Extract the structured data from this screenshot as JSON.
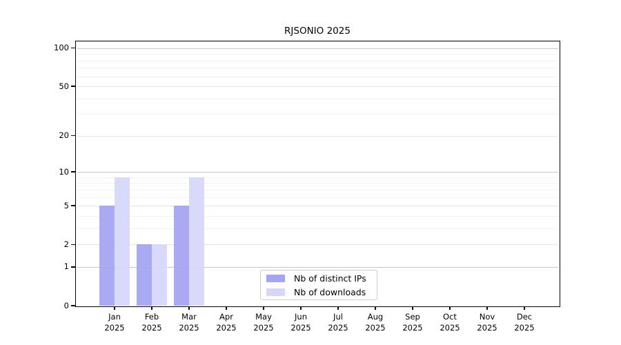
{
  "window": {
    "background": "#ffffff"
  },
  "chart_data": {
    "type": "bar",
    "title": "RJSONIO 2025",
    "categories": [
      "Jan",
      "Feb",
      "Mar",
      "Apr",
      "May",
      "Jun",
      "Jul",
      "Aug",
      "Sep",
      "Oct",
      "Nov",
      "Dec"
    ],
    "year_label": "2025",
    "series": [
      {
        "name": "Nb of distinct IPs",
        "color": "#a4a4f2",
        "values": [
          5,
          2,
          5,
          0,
          0,
          0,
          0,
          0,
          0,
          0,
          0,
          0
        ]
      },
      {
        "name": "Nb of downloads",
        "color": "#d6d6fa",
        "values": [
          9,
          2,
          9,
          0,
          0,
          0,
          0,
          0,
          0,
          0,
          0,
          0
        ]
      }
    ],
    "yticks": [
      0,
      1,
      2,
      5,
      10,
      20,
      50,
      100
    ],
    "yscale": "log1p",
    "ylim": [
      0,
      113
    ],
    "xlabel": "",
    "ylabel": "",
    "grid": true,
    "legend_position": "lower center",
    "colors": {
      "axis": "#000000",
      "grid_major": "#c6c6c6",
      "grid_mid": "#e3e3e3",
      "grid_minor": "#f0f0f0",
      "legend_border": "#cccccc"
    }
  }
}
